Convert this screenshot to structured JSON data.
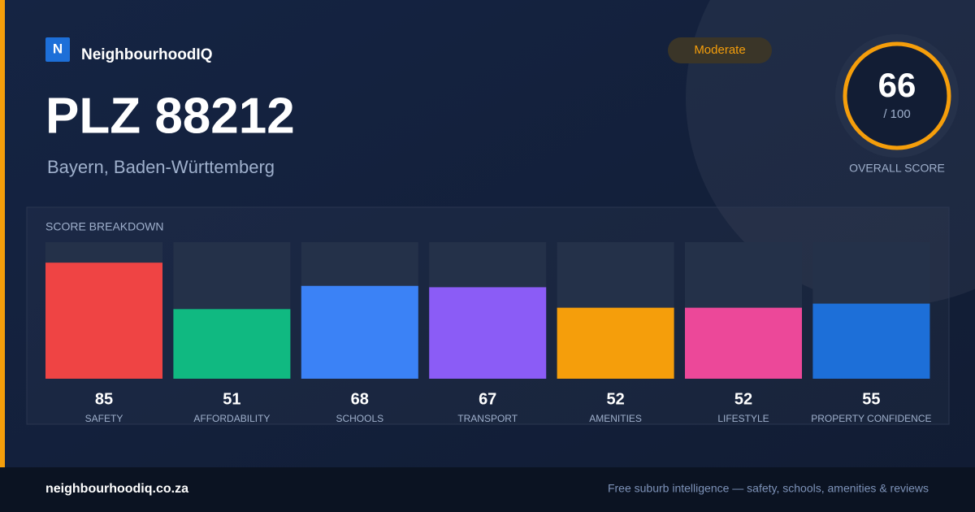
{
  "brand": "NeighbourhoodIQ",
  "logo_letter": "N",
  "badge": "Moderate",
  "title": "PLZ 88212",
  "subtitle": "Bayern, Baden-Württemberg",
  "overall": {
    "score": "66",
    "max_label": "/ 100",
    "label": "OVERALL SCORE"
  },
  "chart_data": {
    "type": "bar",
    "title": "SCORE BREAKDOWN",
    "categories": [
      "SAFETY",
      "AFFORDABILITY",
      "SCHOOLS",
      "TRANSPORT",
      "AMENITIES",
      "LIFESTYLE",
      "PROPERTY CONFIDENCE"
    ],
    "values": [
      85,
      51,
      68,
      67,
      52,
      52,
      55
    ],
    "colors": [
      "#ef4444",
      "#10b981",
      "#3b82f6",
      "#8b5cf6",
      "#f59e0b",
      "#ec4899",
      "#1d6fd8"
    ],
    "ylim": [
      0,
      100
    ]
  },
  "footer": {
    "domain": "neighbourhoodiq.co.za",
    "tagline": "Free suburb intelligence — safety, schools, amenities & reviews"
  }
}
